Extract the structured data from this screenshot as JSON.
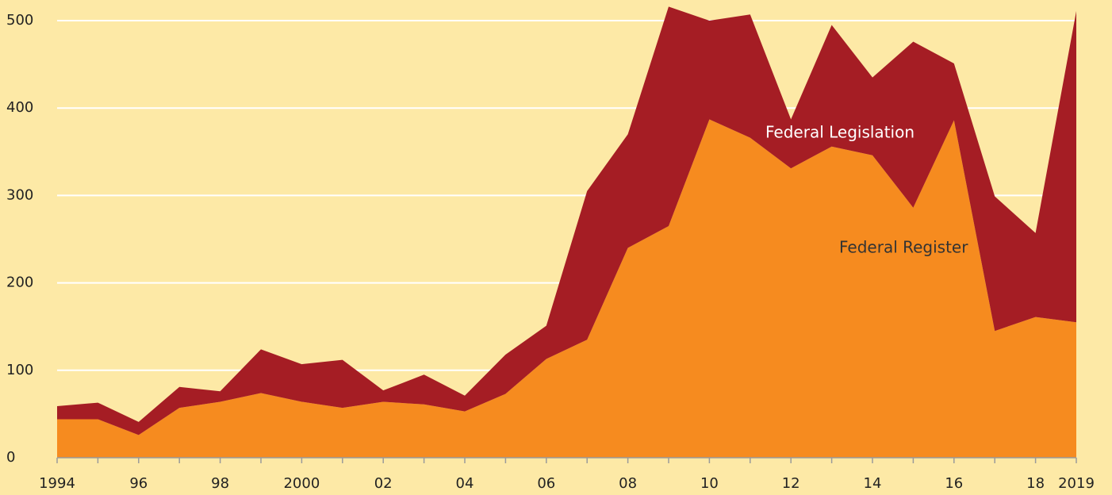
{
  "chart_data": {
    "type": "stacked-area",
    "categories": [
      "1994",
      null,
      "96",
      null,
      "98",
      null,
      "2000",
      null,
      "02",
      null,
      "04",
      null,
      "06",
      null,
      "08",
      null,
      "10",
      null,
      "12",
      null,
      "14",
      null,
      "16",
      null,
      "18",
      "2019"
    ],
    "series": [
      {
        "name": "Federal Register",
        "color": "#f68b1f",
        "label_color": "#333333",
        "values": [
          44,
          44,
          26,
          57,
          64,
          74,
          64,
          57,
          64,
          61,
          53,
          73,
          113,
          135,
          240,
          265,
          387,
          366,
          331,
          356,
          346,
          286,
          386,
          145,
          161,
          155
        ]
      },
      {
        "name": "Federal Legislation",
        "color": "#a51d24",
        "label_color": "#ffffff",
        "values": [
          15,
          19,
          15,
          24,
          12,
          50,
          43,
          55,
          13,
          34,
          18,
          45,
          38,
          170,
          130,
          251,
          113,
          141,
          56,
          139,
          89,
          190,
          65,
          154,
          96,
          356
        ]
      }
    ],
    "ylim": [
      0,
      500
    ],
    "yticks": [
      0,
      100,
      200,
      300,
      400,
      500
    ],
    "grid": true
  }
}
